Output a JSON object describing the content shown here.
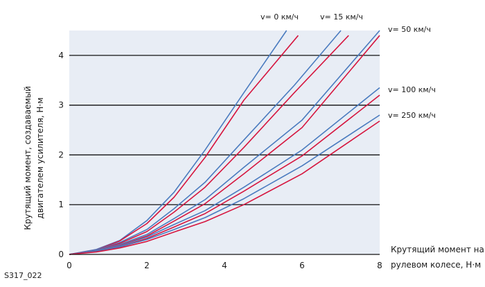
{
  "figure_id": "S317_022",
  "chart_data": {
    "type": "line",
    "title": "",
    "xlabel": [
      "Крутящий момент на",
      "рулевом колесе, Н·м"
    ],
    "ylabel": [
      "Крутящий момент, создаваемый",
      "двигателем усилителя, Н·м"
    ],
    "xlim": [
      0,
      8
    ],
    "ylim": [
      0,
      4.5
    ],
    "x_ticks": [
      "0",
      "2",
      "4",
      "6",
      "8"
    ],
    "y_ticks": [
      "0",
      "1",
      "2",
      "3",
      "4"
    ],
    "grid": "horizontal",
    "plot_background": "#e8edf5",
    "colors": {
      "blue": "#4a7bbf",
      "red": "#d6163f"
    },
    "speed_labels": [
      "v= 0 км/ч",
      "v= 15 км/ч",
      "v= 50 км/ч",
      "v= 100 км/ч",
      "v= 250 км/ч"
    ],
    "series": [
      {
        "group": "v= 0 км/ч",
        "color": "blue",
        "points": [
          [
            0,
            0
          ],
          [
            0.7,
            0.1
          ],
          [
            1.3,
            0.28
          ],
          [
            2,
            0.68
          ],
          [
            2.7,
            1.25
          ],
          [
            3.5,
            2.1
          ],
          [
            4.5,
            3.25
          ],
          [
            5.6,
            4.5
          ]
        ]
      },
      {
        "group": "v= 0 км/ч",
        "color": "red",
        "points": [
          [
            0,
            0
          ],
          [
            0.7,
            0.09
          ],
          [
            1.3,
            0.27
          ],
          [
            2,
            0.62
          ],
          [
            2.7,
            1.15
          ],
          [
            3.5,
            1.95
          ],
          [
            4.5,
            3.1
          ],
          [
            5.9,
            4.4
          ]
        ]
      },
      {
        "group": "v= 15 км/ч",
        "color": "blue",
        "points": [
          [
            0,
            0
          ],
          [
            0.7,
            0.09
          ],
          [
            1.3,
            0.24
          ],
          [
            2,
            0.5
          ],
          [
            2.7,
            0.92
          ],
          [
            3.5,
            1.45
          ],
          [
            4.5,
            2.3
          ],
          [
            5.8,
            3.4
          ],
          [
            7,
            4.5
          ]
        ]
      },
      {
        "group": "v= 15 км/ч",
        "color": "red",
        "points": [
          [
            0,
            0
          ],
          [
            0.7,
            0.08
          ],
          [
            1.3,
            0.22
          ],
          [
            2,
            0.46
          ],
          [
            2.7,
            0.85
          ],
          [
            3.5,
            1.35
          ],
          [
            4.5,
            2.15
          ],
          [
            5.8,
            3.25
          ],
          [
            7.2,
            4.4
          ]
        ]
      },
      {
        "group": "v= 50 км/ч",
        "color": "blue",
        "points": [
          [
            0,
            0
          ],
          [
            0.7,
            0.08
          ],
          [
            1.3,
            0.2
          ],
          [
            2,
            0.4
          ],
          [
            2.7,
            0.72
          ],
          [
            3.5,
            1.1
          ],
          [
            4.5,
            1.75
          ],
          [
            6,
            2.7
          ],
          [
            8,
            4.5
          ]
        ]
      },
      {
        "group": "v= 50 км/ч",
        "color": "red",
        "points": [
          [
            0,
            0
          ],
          [
            0.7,
            0.07
          ],
          [
            1.3,
            0.18
          ],
          [
            2,
            0.37
          ],
          [
            2.7,
            0.67
          ],
          [
            3.5,
            1.02
          ],
          [
            4.5,
            1.62
          ],
          [
            6,
            2.55
          ],
          [
            8,
            4.4
          ]
        ]
      },
      {
        "group": "v= 100 км/ч",
        "color": "blue",
        "points": [
          [
            0,
            0
          ],
          [
            0.7,
            0.07
          ],
          [
            1.3,
            0.17
          ],
          [
            2,
            0.35
          ],
          [
            2.7,
            0.6
          ],
          [
            3.5,
            0.88
          ],
          [
            4.5,
            1.35
          ],
          [
            6,
            2.1
          ],
          [
            8,
            3.35
          ]
        ]
      },
      {
        "group": "v= 100 км/ч",
        "color": "red",
        "points": [
          [
            0,
            0
          ],
          [
            0.7,
            0.06
          ],
          [
            1.3,
            0.15
          ],
          [
            2,
            0.32
          ],
          [
            2.7,
            0.55
          ],
          [
            3.5,
            0.82
          ],
          [
            4.5,
            1.27
          ],
          [
            6,
            1.98
          ],
          [
            8,
            3.2
          ]
        ]
      },
      {
        "group": "v= 250 км/ч",
        "color": "blue",
        "points": [
          [
            0,
            0
          ],
          [
            0.7,
            0.06
          ],
          [
            1.3,
            0.15
          ],
          [
            2,
            0.3
          ],
          [
            2.7,
            0.5
          ],
          [
            3.5,
            0.74
          ],
          [
            4.5,
            1.12
          ],
          [
            6,
            1.78
          ],
          [
            8,
            2.8
          ]
        ]
      },
      {
        "group": "v= 250 км/ч",
        "color": "red",
        "points": [
          [
            0,
            0
          ],
          [
            0.7,
            0.05
          ],
          [
            1.3,
            0.13
          ],
          [
            2,
            0.26
          ],
          [
            2.7,
            0.45
          ],
          [
            3.5,
            0.66
          ],
          [
            4.5,
            1
          ],
          [
            6,
            1.62
          ],
          [
            8,
            2.68
          ]
        ]
      }
    ]
  }
}
